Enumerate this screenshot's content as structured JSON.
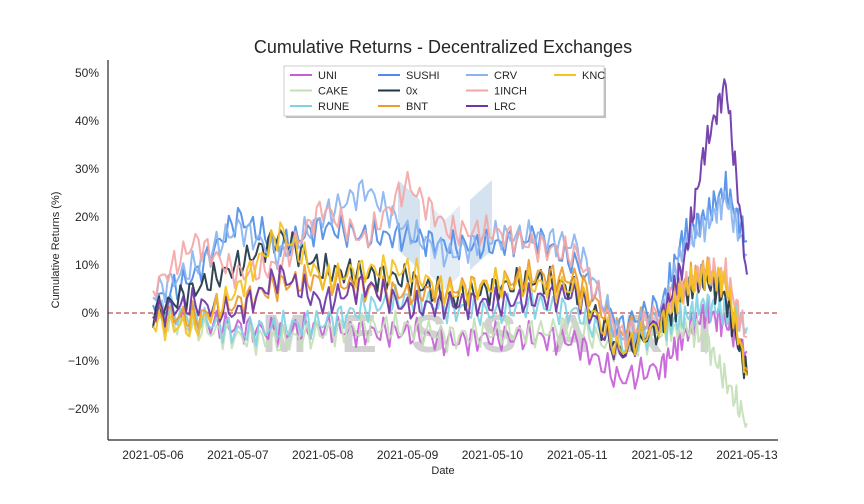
{
  "chart_data": {
    "type": "line",
    "title": "Cumulative Returns - Decentralized Exchanges",
    "xlabel": "Date",
    "ylabel": "Cumulative Returns (%)",
    "x_range": [
      "2021-05-06",
      "2021-05-13"
    ],
    "xticks": [
      "2021-05-06",
      "2021-05-07",
      "2021-05-08",
      "2021-05-09",
      "2021-05-10",
      "2021-05-11",
      "2021-05-12",
      "2021-05-13"
    ],
    "ylim": [
      -26,
      53
    ],
    "yticks": [
      -20,
      -10,
      0,
      10,
      20,
      30,
      40,
      50
    ],
    "ytick_labels": [
      "−20%",
      "−10%",
      "0%",
      "10%",
      "20%",
      "30%",
      "40%",
      "50%"
    ],
    "reference_line": {
      "y": 0,
      "color": "#c44e52",
      "style": "dashed"
    },
    "grid": false,
    "legend_position": "top-center",
    "legend_columns": 4,
    "watermark": "MESSARI",
    "x_dates": [
      "2021-05-06",
      "2021-05-06 12:00",
      "2021-05-07",
      "2021-05-07 12:00",
      "2021-05-08",
      "2021-05-08 12:00",
      "2021-05-09",
      "2021-05-09 12:00",
      "2021-05-10",
      "2021-05-10 12:00",
      "2021-05-11",
      "2021-05-11 12:00",
      "2021-05-12",
      "2021-05-12 06:00",
      "2021-05-12 12:00",
      "2021-05-12 18:00",
      "2021-05-13"
    ],
    "series": [
      {
        "name": "UNI",
        "color": "#c65fd6",
        "values": [
          0,
          -2,
          -3,
          -4,
          -3,
          -4,
          -4,
          -6,
          -5,
          -5,
          -6,
          -14,
          -11,
          -5,
          0,
          -2,
          -8
        ]
      },
      {
        "name": "CAKE",
        "color": "#c4dfb8",
        "values": [
          -1,
          -3,
          -5,
          -6,
          -4,
          -3,
          -3,
          -5,
          -4,
          -4,
          -3,
          -8,
          -4,
          -3,
          -5,
          -14,
          -23
        ]
      },
      {
        "name": "RUNE",
        "color": "#7fd3e3",
        "values": [
          1,
          -1,
          -4,
          -3,
          -2,
          1,
          3,
          1,
          0,
          2,
          0,
          -7,
          -3,
          -1,
          2,
          0,
          -3
        ]
      },
      {
        "name": "SUSHI",
        "color": "#4f8ee8",
        "values": [
          2,
          8,
          20,
          14,
          18,
          16,
          16,
          14,
          14,
          16,
          10,
          -3,
          2,
          16,
          20,
          26,
          15
        ]
      },
      {
        "name": "0x",
        "color": "#1f3545",
        "values": [
          0,
          5,
          10,
          16,
          9,
          8,
          7,
          3,
          5,
          7,
          5,
          -8,
          -3,
          4,
          7,
          3,
          -13
        ]
      },
      {
        "name": "BNT",
        "color": "#ee9b2e",
        "values": [
          0,
          -1,
          2,
          6,
          7,
          5,
          4,
          5,
          6,
          8,
          7,
          -4,
          0,
          6,
          9,
          6,
          -12
        ]
      },
      {
        "name": "CRV",
        "color": "#8ab4f0",
        "values": [
          4,
          10,
          18,
          12,
          20,
          26,
          17,
          12,
          16,
          16,
          14,
          -5,
          0,
          14,
          18,
          24,
          12
        ]
      },
      {
        "name": "1INCH",
        "color": "#f4a6a6",
        "values": [
          5,
          15,
          8,
          10,
          22,
          15,
          27,
          17,
          17,
          14,
          12,
          -5,
          0,
          5,
          9,
          8,
          -5
        ]
      },
      {
        "name": "LRC",
        "color": "#6d35a8",
        "values": [
          0,
          2,
          0,
          8,
          2,
          6,
          1,
          2,
          2,
          3,
          4,
          -9,
          -1,
          10,
          34,
          48,
          8
        ]
      },
      {
        "name": "KNC",
        "color": "#f5c21f",
        "values": [
          -2,
          -3,
          5,
          17,
          7,
          9,
          9,
          4,
          6,
          6,
          5,
          -8,
          -2,
          5,
          8,
          7,
          -13
        ]
      }
    ]
  }
}
